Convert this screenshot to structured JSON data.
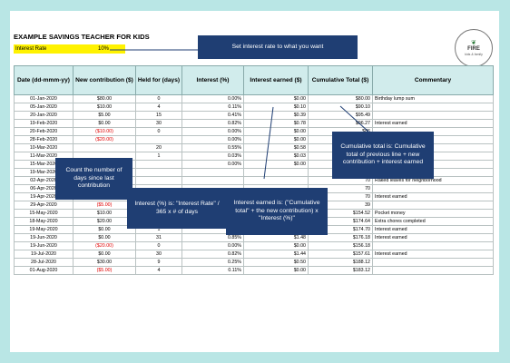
{
  "title": "EXAMPLE SAVINGS TEACHER FOR KIDS",
  "interest_rate": {
    "label": "Interest Rate",
    "value": "10%"
  },
  "logo": {
    "name": "FIRE",
    "tagline": "kids & family"
  },
  "headers": {
    "date": "Date (dd-mmm-yy)",
    "contribution": "New contribution ($)",
    "held": "Held for (days)",
    "interest": "Interest (%)",
    "earned": "Interest earned ($)",
    "cumulative": "Cumulative Total ($)",
    "commentary": "Commentary"
  },
  "rows": [
    {
      "date": "01-Jan-2020",
      "contribution": "$80.00",
      "held": "0",
      "interest": "0.00%",
      "earned": "$0.00",
      "cumulative": "$80.00",
      "commentary": "Birthday lump sum"
    },
    {
      "date": "05-Jan-2020",
      "contribution": "$10.00",
      "held": "4",
      "interest": "0.11%",
      "earned": "$0.10",
      "cumulative": "$90.10",
      "commentary": ""
    },
    {
      "date": "20-Jan-2020",
      "contribution": "$5.00",
      "held": "15",
      "interest": "0.41%",
      "earned": "$0.39",
      "cumulative": "$95.49",
      "commentary": ""
    },
    {
      "date": "19-Feb-2020",
      "contribution": "$0.00",
      "held": "30",
      "interest": "0.82%",
      "earned": "$0.78",
      "cumulative": "$96.27",
      "commentary": "Interest earned"
    },
    {
      "date": "20-Feb-2020",
      "contribution": "($10.00)",
      "held": "0",
      "interest": "0.00%",
      "earned": "$0.00",
      "cumulative": "$86",
      "commentary": ""
    },
    {
      "date": "28-Feb-2020",
      "contribution": "($20.00)",
      "held": "",
      "interest": "0.00%",
      "earned": "$0.00",
      "cumulative": "$66",
      "commentary": ""
    },
    {
      "date": "10-Mar-2020",
      "contribution": "",
      "held": "20",
      "interest": "0.55%",
      "earned": "$0.58",
      "cumulative": "$106",
      "commentary": ""
    },
    {
      "date": "11-Mar-2020",
      "contribution": "",
      "held": "1",
      "interest": "0.03%",
      "earned": "$0.03",
      "cumulative": "$116",
      "commentary": ""
    },
    {
      "date": "15-Mar-2020",
      "contribution": "",
      "held": "",
      "interest": "0.00%",
      "earned": "$0.00",
      "cumulative": "$86",
      "commentary": ""
    },
    {
      "date": "19-Mar-2020",
      "contribution": "",
      "held": "",
      "interest": "",
      "earned": "",
      "cumulative": "10",
      "commentary": "Interest earned"
    },
    {
      "date": "02-Apr-2020",
      "contribution": "",
      "held": "",
      "interest": "",
      "earned": "",
      "cumulative": "70",
      "commentary": "Raked leaves for neighborhood"
    },
    {
      "date": "06-Apr-2020",
      "contribution": "($10.00)",
      "held": "",
      "interest": "",
      "earned": "",
      "cumulative": "70",
      "commentary": ""
    },
    {
      "date": "19-Apr-2020",
      "contribution": "$0.00",
      "held": "",
      "interest": "",
      "earned": "",
      "cumulative": "70",
      "commentary": "Interest earned"
    },
    {
      "date": "29-Apr-2020",
      "contribution": "($5.00)",
      "held": "0",
      "interest": "0.00%",
      "earned": "$0.00",
      "cumulative": "39",
      "commentary": ""
    },
    {
      "date": "15-May-2020",
      "contribution": "$10.00",
      "held": "26",
      "interest": "0.71%",
      "earned": "$1.13",
      "cumulative": "$154.52",
      "commentary": "Pocket money"
    },
    {
      "date": "18-May-2020",
      "contribution": "$20.00",
      "held": "3",
      "interest": "0.08%",
      "earned": "$0.13",
      "cumulative": "$174.64",
      "commentary": "Extra chores completed"
    },
    {
      "date": "19-May-2020",
      "contribution": "$0.00",
      "held": "1",
      "interest": "0.03%",
      "earned": "$0.04",
      "cumulative": "$174.70",
      "commentary": "Interest earned"
    },
    {
      "date": "19-Jun-2020",
      "contribution": "$0.00",
      "held": "31",
      "interest": "0.85%",
      "earned": "$1.48",
      "cumulative": "$176.18",
      "commentary": "Interest earned"
    },
    {
      "date": "19-Jun-2020",
      "contribution": "($20.00)",
      "held": "0",
      "interest": "0.00%",
      "earned": "$0.00",
      "cumulative": "$156.18",
      "commentary": ""
    },
    {
      "date": "19-Jul-2020",
      "contribution": "$0.00",
      "held": "30",
      "interest": "0.82%",
      "earned": "$1.44",
      "cumulative": "$157.61",
      "commentary": "Interest earned"
    },
    {
      "date": "28-Jul-2020",
      "contribution": "$30.00",
      "held": "9",
      "interest": "0.25%",
      "earned": "$0.50",
      "cumulative": "$188.12",
      "commentary": ""
    },
    {
      "date": "01-Aug-2020",
      "contribution": "($5.00)",
      "held": "4",
      "interest": "0.11%",
      "earned": "$0.00",
      "cumulative": "$183.12",
      "commentary": ""
    }
  ],
  "callouts": {
    "set_rate": "Set interest rate to what you want",
    "days": "Count the number of days since last contribution",
    "interest_pct": "Interest (%) is: \"Interest Rate\" / 365 x # of days",
    "earned": "Interest earned is: (\"Cumulative total\" + the new contribution) x \"Interest (%)\"",
    "cumulative": "Cumulative total is: Cumulative total of previous line + new contribution + interest earned"
  }
}
